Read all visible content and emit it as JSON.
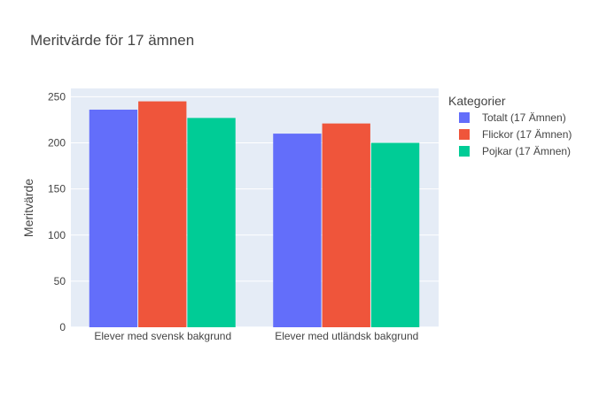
{
  "chart_data": {
    "type": "bar",
    "title": "Meritvärde för 17 ämnen",
    "xlabel": "",
    "ylabel": "Meritvärde",
    "categories": [
      "Elever med svensk bakgrund",
      "Elever med utländsk bakgrund"
    ],
    "series": [
      {
        "name": "Totalt (17 Ämnen)",
        "values": [
          236,
          210
        ],
        "color": "#636efa"
      },
      {
        "name": "Flickor (17 Ämnen)",
        "values": [
          245,
          221
        ],
        "color": "#ef553b"
      },
      {
        "name": "Pojkar (17 Ämnen)",
        "values": [
          227,
          200
        ],
        "color": "#00cc96"
      }
    ],
    "ylim": [
      0,
      259
    ],
    "yticks": [
      0,
      50,
      100,
      150,
      200,
      250
    ],
    "grid": true,
    "legend": {
      "title": "Kategorier",
      "placement": "right"
    },
    "plot_background": "#e5ecf6"
  }
}
